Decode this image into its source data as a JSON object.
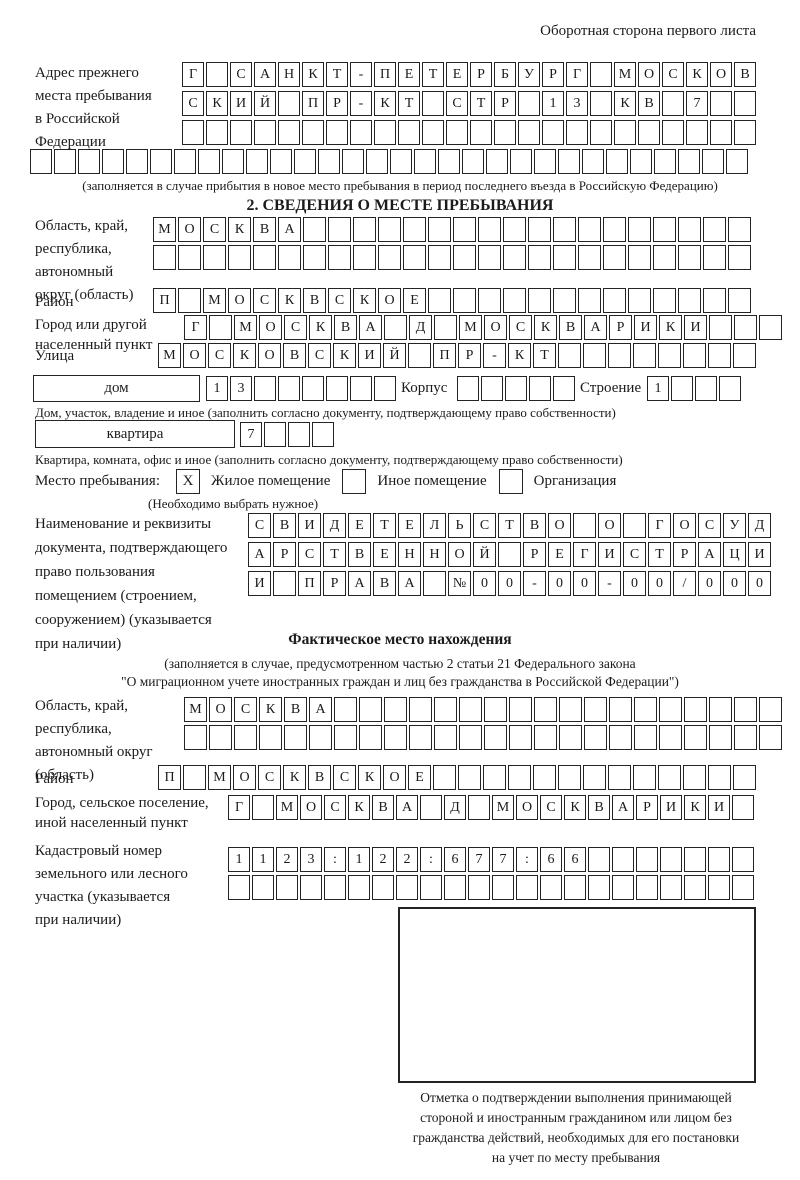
{
  "colors": {
    "ink": "#1b1b1b",
    "paper": "#ffffff",
    "box_border": "#242424"
  },
  "header": {
    "note": "Оборотная сторона первого листа"
  },
  "prev_address": {
    "label_lines": [
      "Адрес прежнего",
      "места пребывания",
      "в Российской",
      "Федерации"
    ],
    "rows": [
      {
        "text": "Г САНКТ-ПЕТЕРБУРГ МОСКОВ",
        "count": 24
      },
      {
        "text": "СКИЙ ПР-КТ СТР 13 КВ 7",
        "count": 24
      },
      {
        "text": "",
        "count": 24
      },
      {
        "text": "",
        "count": 30
      }
    ],
    "caption": "(заполняется в случае прибытия в новое место пребывания в период последнего въезда в Российскую Федерацию)"
  },
  "section2": {
    "title": "2. СВЕДЕНИЯ О МЕСТЕ ПРЕБЫВАНИЯ",
    "region": {
      "label_lines": [
        "Область, край,",
        "республика,",
        "автономный",
        "округ (область)"
      ],
      "rows": [
        {
          "text": "МОСКВА",
          "count": 24
        },
        {
          "text": "",
          "count": 24
        }
      ]
    },
    "district": {
      "label": "Район",
      "row": {
        "text": "П МОСКВСКОЕ",
        "count": 24
      }
    },
    "city": {
      "label_lines": [
        "Город или другой",
        "населенный пункт"
      ],
      "row": {
        "text": "Г МОСКВА Д МОСКВАРИКИ",
        "count": 24
      }
    },
    "street": {
      "label": "Улица",
      "row": {
        "text": "МОСКОВСКИЙ ПР-КТ",
        "count": 24
      }
    },
    "house": {
      "field_label": "дом",
      "row": {
        "text": "13",
        "count": 8
      },
      "korpus_label": "Корпус",
      "korpus_row": {
        "text": "",
        "count": 5
      },
      "stroenie_label": "Строение",
      "stroenie_row": {
        "text": "1",
        "count": 4
      },
      "caption": "Дом, участок, владение и иное (заполнить согласно документу, подтверждающему право собственности)"
    },
    "apartment": {
      "field_label": "квартира",
      "row": {
        "text": "7",
        "count": 4
      },
      "caption": "Квартира, комната, офис и иное (заполнить согласно документу, подтверждающему право собственности)"
    },
    "stay_type": {
      "label": "Место пребывания:",
      "options": [
        {
          "label": "Жилое помещение",
          "mark": "X"
        },
        {
          "label": "Иное помещение",
          "mark": ""
        },
        {
          "label": "Организация",
          "mark": ""
        }
      ],
      "note": "(Необходимо выбрать нужное)"
    },
    "doc": {
      "label_lines": [
        "Наименование и реквизиты",
        "документа, подтверждающего",
        "право пользования",
        "помещением (строением,",
        "сооружением) (указывается",
        "при наличии)"
      ],
      "rows": [
        {
          "text": "СВИДЕТЕЛЬСТВО О ГОСУД",
          "count": 21
        },
        {
          "text": "АРСТВЕННОЙ РЕГИСТРАЦИ",
          "count": 21
        },
        {
          "text": "И ПРАВА №00-00-00/000",
          "count": 21
        }
      ]
    }
  },
  "factual": {
    "title": "Фактическое место нахождения",
    "subtitle_lines": [
      "(заполняется в случае, предусмотренном частью 2 статьи 21 Федерального закона",
      "\"О миграционном учете иностранных граждан и лиц без гражданства в Российской Федерации\")"
    ],
    "region": {
      "label_lines": [
        "Область, край,",
        "республика,",
        "автономный округ",
        "(область)"
      ],
      "rows": [
        {
          "text": "МОСКВА",
          "count": 24
        },
        {
          "text": "",
          "count": 24
        }
      ]
    },
    "district": {
      "label": "Район",
      "row": {
        "text": "П МОСКВСКОЕ",
        "count": 24
      }
    },
    "city": {
      "label_lines": [
        "Город, сельское поселение,",
        "иной населенный пункт"
      ],
      "row": {
        "text": "Г МОСКВА Д МОСКВАРИКИ",
        "count": 22
      }
    },
    "cadastre": {
      "label_lines": [
        "Кадастровый номер",
        "земельного или лесного",
        "участка (указывается",
        "при наличии)"
      ],
      "rows": [
        {
          "text": "1123:122:677:66",
          "count": 22
        },
        {
          "text": "",
          "count": 22
        }
      ]
    },
    "stamp_caption_lines": [
      "Отметка о подтверждении выполнения принимающей",
      "стороной и иностранным гражданином или лицом без",
      "гражданства действий, необходимых для его постановки",
      "на учет по месту пребывания"
    ]
  }
}
